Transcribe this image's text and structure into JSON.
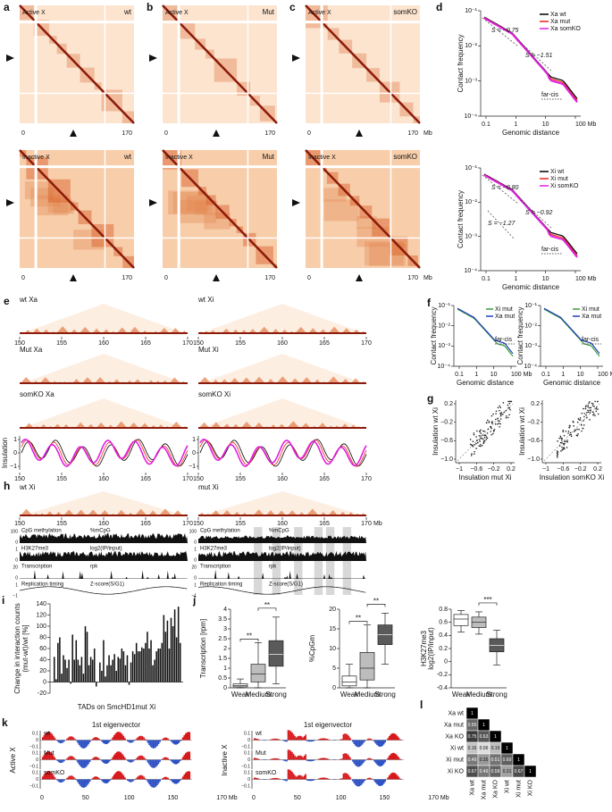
{
  "sample_colors": [
    "#000000",
    "#e8231f",
    "#e020e0"
  ],
  "a": {
    "label": "a",
    "top_title": "Active X",
    "top_sample": "wt",
    "bottom_title": "Inactive X",
    "bottom_sample": "wt",
    "axis_start": "0",
    "axis_end": "170",
    "sample_color": "#000000"
  },
  "b": {
    "label": "b",
    "top_title": "Active X",
    "top_sample": "Mut",
    "bottom_title": "Inactive X",
    "bottom_sample": "Mut",
    "axis_start": "0",
    "axis_end": "170",
    "sample_color": "#e8231f"
  },
  "c": {
    "label": "c",
    "top_title": "Active X",
    "top_sample": "somKO",
    "bottom_title": "Inactive X",
    "bottom_sample": "somKO",
    "axis_start": "0",
    "axis_end": "170",
    "axis_unit": "Mb",
    "sample_color": "#e020e0"
  },
  "d": {
    "label": "d",
    "xlabel": "Genomic distance",
    "ylabel": "Contact frequency",
    "xticks": [
      "0.1",
      "1",
      "10",
      "100 Mb"
    ],
    "yticks": [
      "10⁻¹",
      "10⁻²",
      "10⁻³",
      "10⁻⁴"
    ],
    "colors": [
      "#000000",
      "#e8231f",
      "#e020e0"
    ],
    "top": {
      "legend": [
        "Xa wt",
        "Xa mut",
        "Xa somKO"
      ],
      "slopes": [
        "S = −0.75",
        "S = −1.51"
      ],
      "note": "far-cis"
    },
    "bottom": {
      "legend": [
        "Xi wt",
        "Xi mut",
        "Xi somKO"
      ],
      "slopes": [
        "S = −0.80",
        "S = −0.92",
        "S = −1.27"
      ],
      "note": "far-cis"
    }
  },
  "e": {
    "label": "e",
    "left_rows": [
      "wt Xa",
      "Mut Xa",
      "somKO Xa"
    ],
    "right_rows": [
      "wt Xi",
      "Mut Xi",
      "somKO Xi"
    ],
    "xticks": [
      "150",
      "155",
      "160",
      "165",
      "170"
    ],
    "ylabel": "Insulation",
    "yticks": [
      "1",
      "0",
      "−1"
    ]
  },
  "f": {
    "label": "f",
    "legend": [
      "Xi mut",
      "Xa mut"
    ],
    "colors": [
      "#3a9a3a",
      "#1f3fbf"
    ],
    "ylabel": "Contact frequency",
    "xlabel": "Genomic distance",
    "xticks": [
      "0.1",
      "1",
      "10",
      "100 Mb"
    ],
    "yticks": [
      "10⁻¹",
      "10⁻²",
      "10⁻³",
      "10⁻⁴"
    ],
    "note": "far-cis"
  },
  "g": {
    "label": "g",
    "ylabel": "Insulation wt Xi",
    "xlabels": [
      "Insulation mut Xi",
      "Insulation somKO Xi"
    ],
    "xticks": [
      "−1",
      "−0.6",
      "−0.2",
      "0.2"
    ],
    "yticks": [
      "0.2",
      "−0.2",
      "−0.6",
      "−1.0"
    ]
  },
  "h": {
    "label": "h",
    "titles": [
      "wt Xi",
      "mut Xi"
    ],
    "xticks": [
      "150",
      "155",
      "160",
      "165",
      "170"
    ],
    "unit": "Mb",
    "track_names": [
      "CpG methylation",
      "H3K27me3",
      "Transcription",
      "Replication timing"
    ],
    "track_units": [
      "%mCpG",
      "log2(IP/input)",
      "rpk",
      "Z-score(S/G1)"
    ],
    "track_ticks": [
      [
        "100",
        "0"
      ],
      [
        "1",
        "0"
      ],
      [
        "20",
        "0"
      ],
      [
        "1",
        "−1"
      ]
    ]
  },
  "i": {
    "label": "i",
    "ylabel": [
      "Change in interaction counts",
      "(mut-wt)/wt [%]"
    ],
    "xlabel": "TADs on SmcHD1mut Xi",
    "ylim": [
      -20,
      140
    ],
    "yticks": [
      -20,
      0,
      20,
      40,
      60,
      80,
      100,
      120,
      140
    ],
    "values": [
      45,
      5,
      70,
      80,
      15,
      48,
      40,
      25,
      40,
      -3,
      85,
      40,
      75,
      40,
      30,
      45,
      15,
      100,
      90,
      30,
      45,
      40,
      60,
      -8,
      0,
      35,
      20,
      75,
      10,
      30,
      48,
      30,
      40,
      50,
      20,
      45,
      42,
      60,
      55,
      30,
      48,
      -5,
      35,
      55,
      50,
      70,
      55,
      55,
      62,
      60,
      70,
      90,
      60,
      75,
      30,
      40,
      55,
      60,
      60,
      70,
      120,
      90,
      110,
      60,
      115,
      100,
      130,
      80,
      135,
      70
    ]
  },
  "j": {
    "label": "j",
    "categories": [
      "Weak",
      "Medium",
      "Strong"
    ],
    "fills": [
      "#ffffff",
      "#bdbdbd",
      "#5a5a5a"
    ],
    "plots": [
      {
        "ylabel": [
          "Transcription [rpm]"
        ],
        "ylim": [
          0,
          4
        ],
        "yticks": [
          0,
          0.5,
          1,
          1.5,
          2,
          2.5,
          3,
          3.5,
          4
        ],
        "sig": [
          "**",
          "**"
        ],
        "boxes": [
          {
            "min": 0,
            "q1": 0.05,
            "median": 0.12,
            "q3": 0.2,
            "max": 0.45
          },
          {
            "min": 0,
            "q1": 0.3,
            "median": 0.7,
            "q3": 1.2,
            "max": 2.3
          },
          {
            "min": 0.2,
            "q1": 1.1,
            "median": 1.7,
            "q3": 2.4,
            "max": 3.6
          }
        ]
      },
      {
        "ylabel": [
          "%CpGm"
        ],
        "ylim": [
          0,
          20
        ],
        "yticks": [
          0,
          5,
          10,
          15,
          20
        ],
        "sig": [
          "**",
          "**"
        ],
        "boxes": [
          {
            "min": 0,
            "q1": 0.5,
            "median": 1.5,
            "q3": 3,
            "max": 6
          },
          {
            "min": 0,
            "q1": 2,
            "median": 5,
            "q3": 9,
            "max": 16
          },
          {
            "min": 6,
            "q1": 11,
            "median": 13.5,
            "q3": 16,
            "max": 19
          }
        ]
      },
      {
        "ylabel": [
          "H3K27me3",
          "log2(IP/input)"
        ],
        "ylim": [
          -0.4,
          0.8
        ],
        "yticks": [
          -0.4,
          -0.2,
          0,
          0.2,
          0.4,
          0.6,
          0.8
        ],
        "sig": [
          "***"
        ],
        "boxes": [
          {
            "min": 0.45,
            "q1": 0.55,
            "median": 0.65,
            "q3": 0.72,
            "max": 0.78
          },
          {
            "min": 0.42,
            "q1": 0.52,
            "median": 0.6,
            "q3": 0.68,
            "max": 0.76
          },
          {
            "min": -0.05,
            "q1": 0.15,
            "median": 0.25,
            "q3": 0.35,
            "max": 0.48
          }
        ]
      }
    ]
  },
  "k": {
    "label": "k",
    "title": "1st eigenvector",
    "ylabels": [
      "Active X",
      "Inactive X"
    ],
    "rows": [
      "wt",
      "Mut",
      "somKO"
    ],
    "yticks": [
      "0.1",
      "0",
      "−0.1"
    ],
    "xticks": [
      "0",
      "50",
      "100",
      "150",
      "170 Mb"
    ]
  },
  "l": {
    "label": "l",
    "names": [
      "Xa wt",
      "Xa mut",
      "Xa KO",
      "Xi wt",
      "Xi mut",
      "Xi KO"
    ],
    "matrix": [
      [
        "1"
      ],
      [
        "0.55",
        "1"
      ],
      [
        "0.75",
        "0.63",
        "1"
      ],
      [
        "0.16",
        "0.06",
        "0.19",
        "1"
      ],
      [
        "0.49",
        "0.35",
        "0.51",
        "0.60",
        "1"
      ],
      [
        "0.67",
        "0.49",
        "0.58",
        "0.31",
        "0.67",
        "1"
      ]
    ]
  }
}
